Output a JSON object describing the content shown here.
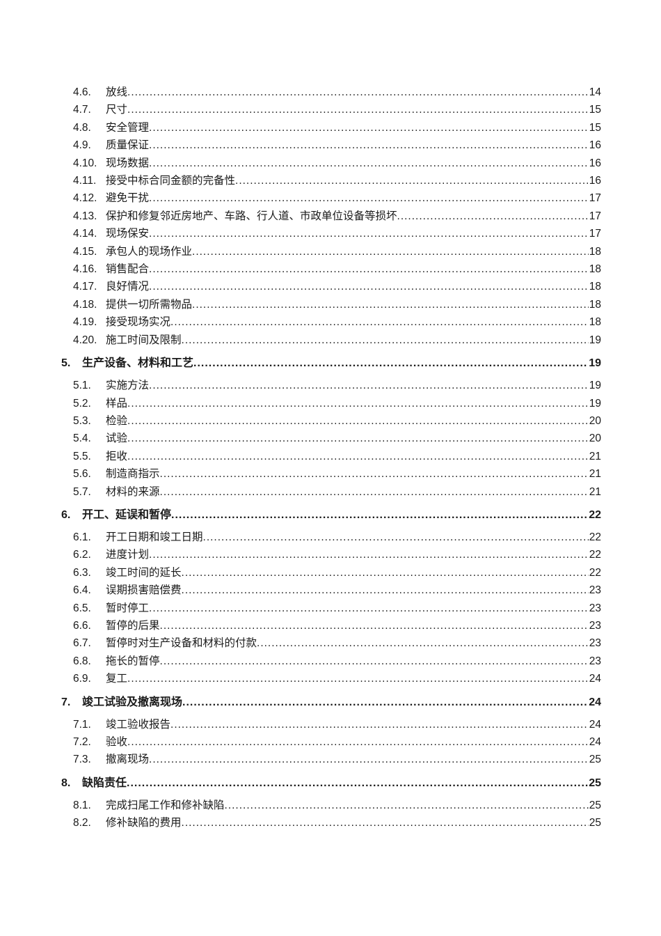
{
  "document": {
    "background_color": "#ffffff",
    "text_color": "#1a1a1a",
    "kind": "table-of-contents-page"
  },
  "toc": {
    "entries": [
      {
        "level": 2,
        "num": "4.6.",
        "label": "放线",
        "page": "14"
      },
      {
        "level": 2,
        "num": "4.7.",
        "label": "尺寸",
        "page": "15"
      },
      {
        "level": 2,
        "num": "4.8.",
        "label": "安全管理",
        "page": "15"
      },
      {
        "level": 2,
        "num": "4.9.",
        "label": "质量保证",
        "page": "16"
      },
      {
        "level": 2,
        "num": "4.10.",
        "label": "现场数据",
        "page": "16"
      },
      {
        "level": 2,
        "num": "4.11.",
        "label": "接受中标合同金额的完备性",
        "page": "16"
      },
      {
        "level": 2,
        "num": "4.12.",
        "label": "避免干扰",
        "page": "17"
      },
      {
        "level": 2,
        "num": "4.13.",
        "label": "保护和修复邻近房地产、车路、行人道、市政单位设备等损坏",
        "page": "17"
      },
      {
        "level": 2,
        "num": "4.14.",
        "label": "现场保安",
        "page": "17"
      },
      {
        "level": 2,
        "num": "4.15.",
        "label": "承包人的现场作业",
        "page": "18"
      },
      {
        "level": 2,
        "num": "4.16.",
        "label": "销售配合",
        "page": "18"
      },
      {
        "level": 2,
        "num": "4.17.",
        "label": "良好情况",
        "page": "18"
      },
      {
        "level": 2,
        "num": "4.18.",
        "label": "提供一切所需物品",
        "page": "18"
      },
      {
        "level": 2,
        "num": "4.19.",
        "label": "接受现场实况",
        "page": "18"
      },
      {
        "level": 2,
        "num": "4.20.",
        "label": "施工时间及限制",
        "page": "19"
      },
      {
        "level": 1,
        "num": "5.",
        "label": "生产设备、材料和工艺",
        "page": "19"
      },
      {
        "level": 2,
        "num": "5.1.",
        "label": "实施方法",
        "page": "19"
      },
      {
        "level": 2,
        "num": "5.2.",
        "label": "样品",
        "page": "19"
      },
      {
        "level": 2,
        "num": "5.3.",
        "label": "检验",
        "page": "20"
      },
      {
        "level": 2,
        "num": "5.4.",
        "label": "试验",
        "page": "20"
      },
      {
        "level": 2,
        "num": "5.5.",
        "label": "拒收",
        "page": "21"
      },
      {
        "level": 2,
        "num": "5.6.",
        "label": "制造商指示",
        "page": "21"
      },
      {
        "level": 2,
        "num": "5.7.",
        "label": "材料的来源",
        "page": "21"
      },
      {
        "level": 1,
        "num": "6.",
        "label": "开工、延误和暂停",
        "page": "22"
      },
      {
        "level": 2,
        "num": "6.1.",
        "label": "开工日期和竣工日期",
        "page": "22"
      },
      {
        "level": 2,
        "num": "6.2.",
        "label": "进度计划",
        "page": "22"
      },
      {
        "level": 2,
        "num": "6.3.",
        "label": "竣工时间的延长",
        "page": "22"
      },
      {
        "level": 2,
        "num": "6.4.",
        "label": "误期损害赔偿费",
        "page": "23"
      },
      {
        "level": 2,
        "num": "6.5.",
        "label": "暂时停工",
        "page": "23"
      },
      {
        "level": 2,
        "num": "6.6.",
        "label": "暂停的后果",
        "page": "23"
      },
      {
        "level": 2,
        "num": "6.7.",
        "label": "暂停时对生产设备和材料的付款",
        "page": "23"
      },
      {
        "level": 2,
        "num": "6.8.",
        "label": "拖长的暂停",
        "page": "23"
      },
      {
        "level": 2,
        "num": "6.9.",
        "label": "复工",
        "page": "24"
      },
      {
        "level": 1,
        "num": "7.",
        "label": "竣工试验及撤离现场",
        "page": "24"
      },
      {
        "level": 2,
        "num": "7.1.",
        "label": "竣工验收报告",
        "page": "24"
      },
      {
        "level": 2,
        "num": "7.2.",
        "label": "验收",
        "page": "24"
      },
      {
        "level": 2,
        "num": "7.3.",
        "label": "撤离现场",
        "page": "25"
      },
      {
        "level": 1,
        "num": "8.",
        "label": "缺陷责任",
        "page": "25"
      },
      {
        "level": 2,
        "num": "8.1.",
        "label": "完成扫尾工作和修补缺陷",
        "page": "25"
      },
      {
        "level": 2,
        "num": "8.2.",
        "label": "修补缺陷的费用",
        "page": "25"
      }
    ]
  }
}
